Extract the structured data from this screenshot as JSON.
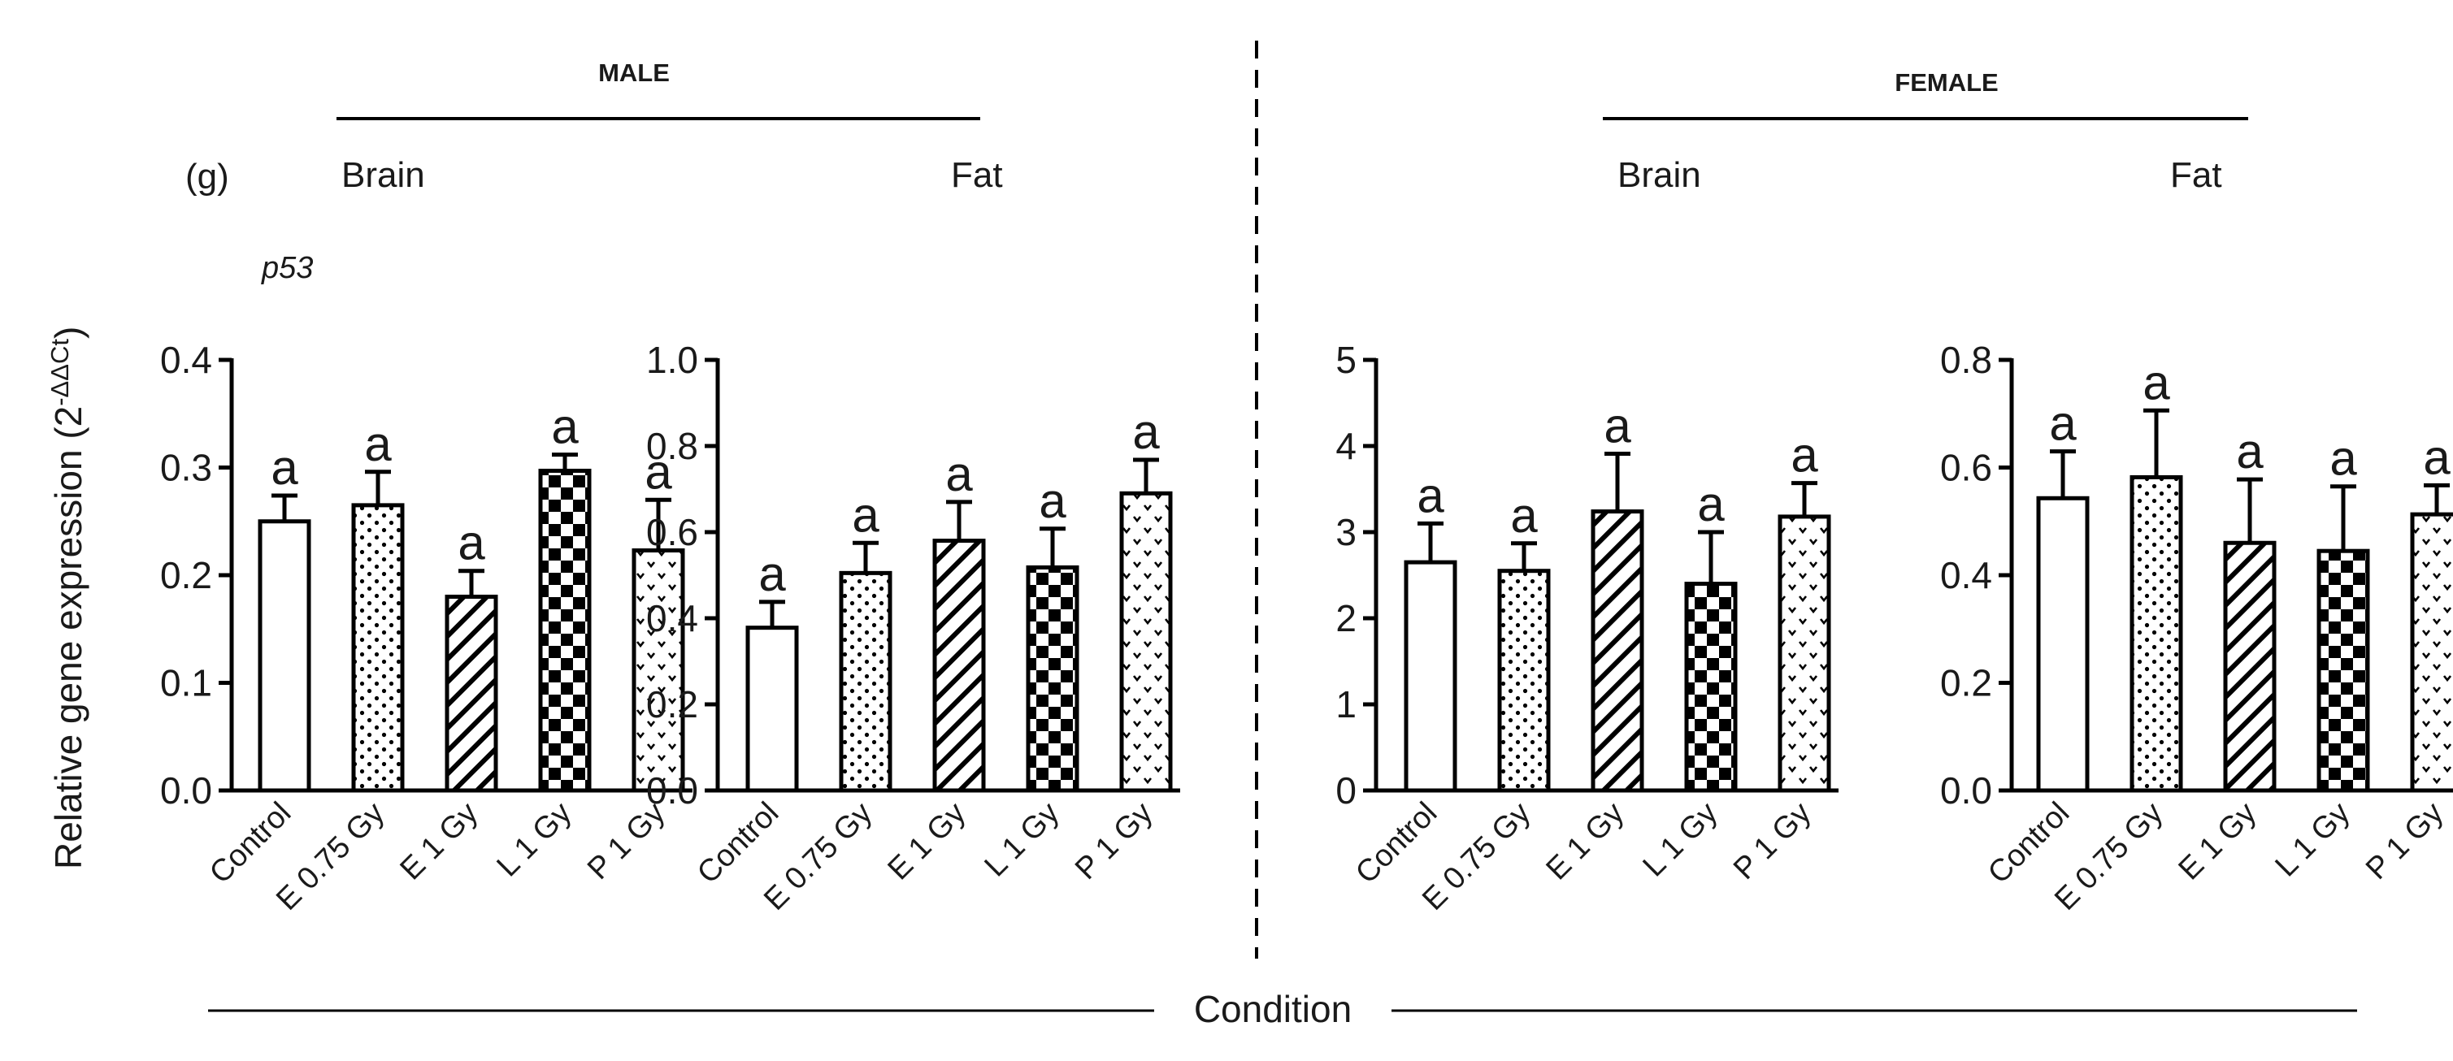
{
  "figure": {
    "panel_label": "(g)",
    "gene_label": "p53",
    "y_axis_label": "Relative gene expression (2",
    "y_axis_superscript": "-ΔΔCt",
    "y_axis_label_close": ")",
    "x_axis_label": "Condition",
    "groups": {
      "male": "MALE",
      "female": "FEMALE"
    }
  },
  "chart_data": [
    {
      "type": "bar",
      "sex": "MALE",
      "tissue": "Brain",
      "title": "Brain",
      "categories": [
        "Control",
        "E 0.75 Gy",
        "E 1 Gy",
        "L 1 Gy",
        "P 1 Gy"
      ],
      "values": [
        0.25,
        0.265,
        0.18,
        0.297,
        0.223
      ],
      "errors": [
        0.024,
        0.031,
        0.024,
        0.015,
        0.047
      ],
      "letters": [
        "a",
        "a",
        "a",
        "a",
        "a"
      ],
      "ylim": [
        0,
        0.4
      ],
      "yticks": [
        "0.0",
        "0.1",
        "0.2",
        "0.3",
        "0.4"
      ],
      "patterns": [
        "white",
        "dots",
        "diagonal",
        "checker",
        "chevrons"
      ]
    },
    {
      "type": "bar",
      "sex": "MALE",
      "tissue": "Fat",
      "title": "Fat",
      "categories": [
        "Control",
        "E 0.75 Gy",
        "E 1 Gy",
        "L 1 Gy",
        "P 1 Gy"
      ],
      "values": [
        0.378,
        0.505,
        0.58,
        0.518,
        0.69
      ],
      "errors": [
        0.06,
        0.07,
        0.09,
        0.09,
        0.078
      ],
      "letters": [
        "a",
        "a",
        "a",
        "a",
        "a"
      ],
      "ylim": [
        0,
        1.0
      ],
      "yticks": [
        "0.0",
        "0.2",
        "0.4",
        "0.6",
        "0.8",
        "1.0"
      ],
      "patterns": [
        "white",
        "dots",
        "diagonal",
        "checker",
        "chevrons"
      ]
    },
    {
      "type": "bar",
      "sex": "FEMALE",
      "tissue": "Brain",
      "title": "Brain",
      "categories": [
        "Control",
        "E 0.75 Gy",
        "E 1 Gy",
        "L 1 Gy",
        "P 1 Gy"
      ],
      "values": [
        2.65,
        2.55,
        3.24,
        2.4,
        3.18
      ],
      "errors": [
        0.45,
        0.32,
        0.67,
        0.6,
        0.39
      ],
      "letters": [
        "a",
        "a",
        "a",
        "a",
        "a"
      ],
      "ylim": [
        0,
        5
      ],
      "yticks": [
        "0",
        "1",
        "2",
        "3",
        "4",
        "5"
      ],
      "patterns": [
        "white",
        "dots",
        "diagonal",
        "checker",
        "chevrons"
      ]
    },
    {
      "type": "bar",
      "sex": "FEMALE",
      "tissue": "Fat",
      "title": "Fat",
      "categories": [
        "Control",
        "E 0.75 Gy",
        "E 1 Gy",
        "L 1 Gy",
        "P 1 Gy"
      ],
      "values": [
        0.543,
        0.582,
        0.46,
        0.445,
        0.513
      ],
      "errors": [
        0.087,
        0.124,
        0.118,
        0.12,
        0.054
      ],
      "letters": [
        "a",
        "a",
        "a",
        "a",
        "a"
      ],
      "ylim": [
        0,
        0.8
      ],
      "yticks": [
        "0.0",
        "0.2",
        "0.4",
        "0.6",
        "0.8"
      ],
      "patterns": [
        "white",
        "dots",
        "diagonal",
        "checker",
        "chevrons"
      ]
    }
  ]
}
